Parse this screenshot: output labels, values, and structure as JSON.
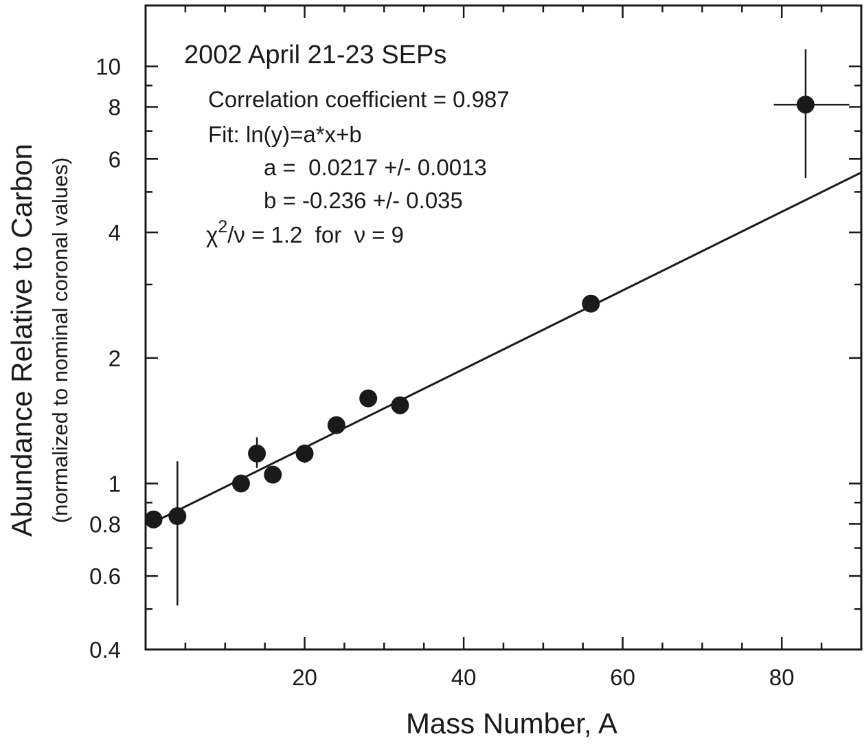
{
  "chart_data": {
    "type": "scatter",
    "title": "2002 April 21-23 SEPs",
    "xlabel": "Mass Number, A",
    "ylabel": "Abundance Relative to Carbon",
    "ylabel_sub": "(normalized to nominal coronal values)",
    "xlim": [
      0,
      90
    ],
    "ylim": [
      0.4,
      14
    ],
    "yscale": "log",
    "grid": false,
    "x_ticks": [
      20,
      40,
      60,
      80
    ],
    "y_ticks": [
      0.4,
      0.6,
      0.8,
      1,
      2,
      4,
      6,
      8,
      10
    ],
    "annotations": {
      "correlation": "Correlation coefficient = 0.987",
      "fit": "Fit: ln(y)=a*x+b",
      "a": "a =  0.0217 +/- 0.0013",
      "b": "b = -0.236 +/- 0.035",
      "chi_prefix": "χ",
      "chi_sup": "2",
      "chi_rest": "/ν = 1.2  for  ν = 9"
    },
    "fit": {
      "a": 0.0217,
      "b": -0.236
    },
    "series": [
      {
        "points": [
          {
            "x": 1,
            "y": 0.82
          },
          {
            "x": 4,
            "y": 0.835,
            "ylo": 0.51,
            "yhi": 1.13
          },
          {
            "x": 12,
            "y": 1.0
          },
          {
            "x": 14,
            "y": 1.18,
            "ylo": 1.09,
            "yhi": 1.29
          },
          {
            "x": 16,
            "y": 1.05
          },
          {
            "x": 20,
            "y": 1.18,
            "ylo": 1.12,
            "yhi": 1.24
          },
          {
            "x": 24,
            "y": 1.38
          },
          {
            "x": 28,
            "y": 1.6
          },
          {
            "x": 32,
            "y": 1.54,
            "ylo": 1.47,
            "yhi": 1.61
          },
          {
            "x": 56,
            "y": 2.7
          },
          {
            "x": 83,
            "y": 8.1,
            "ylo": 5.4,
            "yhi": 11.0,
            "xlo": 79,
            "xhi": 88.5
          }
        ]
      }
    ]
  }
}
